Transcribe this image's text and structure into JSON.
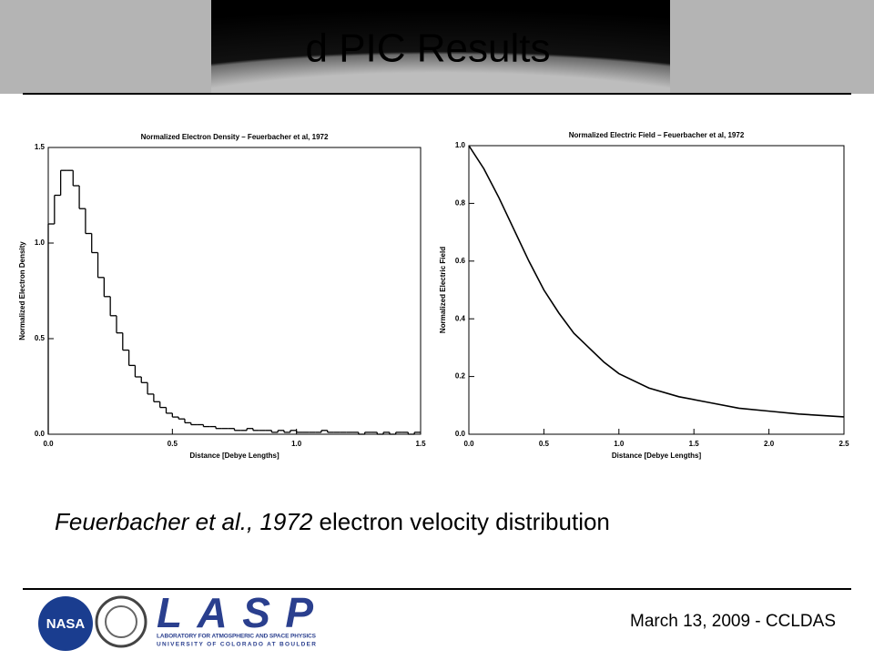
{
  "header": {
    "title": "d PIC Results"
  },
  "chart_data": [
    {
      "type": "histogram",
      "title": "Normalized Electron Density – Feuerbacher et al, 1972",
      "x_label": "Distance [Debye Lengths]",
      "y_label": "Normalized Electron Density",
      "color": "#000000",
      "bins": [
        0,
        0.025,
        0.05,
        0.075,
        0.1,
        0.125,
        0.15,
        0.175,
        0.2,
        0.225,
        0.25,
        0.275,
        0.3,
        0.325,
        0.35,
        0.375,
        0.4,
        0.425,
        0.45,
        0.475,
        0.5,
        0.525,
        0.55,
        0.575,
        0.6,
        0.625,
        0.65,
        0.675,
        0.7,
        0.725,
        0.75,
        0.775,
        0.8,
        0.825,
        0.85,
        0.875,
        0.9,
        0.925,
        0.95,
        0.975,
        1.0,
        1.025,
        1.05,
        1.075,
        1.1,
        1.125,
        1.15,
        1.175,
        1.2,
        1.225,
        1.25,
        1.275,
        1.3,
        1.325,
        1.35,
        1.375,
        1.4,
        1.425,
        1.45,
        1.475,
        1.5
      ],
      "values": [
        1.1,
        1.25,
        1.38,
        1.38,
        1.3,
        1.18,
        1.05,
        0.95,
        0.82,
        0.72,
        0.62,
        0.53,
        0.44,
        0.36,
        0.3,
        0.27,
        0.21,
        0.17,
        0.14,
        0.11,
        0.09,
        0.08,
        0.06,
        0.05,
        0.05,
        0.04,
        0.04,
        0.03,
        0.03,
        0.03,
        0.02,
        0.02,
        0.03,
        0.02,
        0.02,
        0.02,
        0.01,
        0.02,
        0.01,
        0.02,
        0.01,
        0.01,
        0.01,
        0.01,
        0.02,
        0.01,
        0.01,
        0.01,
        0.01,
        0.01,
        0,
        0.01,
        0.01,
        0,
        0.01,
        0,
        0.01,
        0.01,
        0,
        0.01
      ],
      "xlim": [
        0,
        1.5
      ],
      "ylim": [
        0,
        1.5
      ],
      "xticks": [
        {
          "value": 0,
          "label": "0.0"
        },
        0.5,
        {
          "value": 1,
          "label": "1.0"
        },
        1.5
      ],
      "yticks": [
        {
          "value": 0,
          "label": "0.0"
        },
        0.5,
        {
          "value": 1,
          "label": "1.0"
        },
        1.5
      ]
    },
    {
      "type": "line",
      "title": "Normalized Electric Field – Feuerbacher et al, 1972",
      "x_label": "Distance [Debye Lengths]",
      "y_label": "Normalized Electric Field",
      "color": "#000000",
      "x": [
        0,
        0.1,
        0.2,
        0.3,
        0.4,
        0.5,
        0.6,
        0.7,
        0.8,
        0.9,
        1.0,
        1.2,
        1.4,
        1.6,
        1.8,
        2.0,
        2.2,
        2.5
      ],
      "values": [
        1.0,
        0.92,
        0.82,
        0.71,
        0.6,
        0.5,
        0.42,
        0.35,
        0.3,
        0.25,
        0.21,
        0.16,
        0.13,
        0.11,
        0.09,
        0.08,
        0.07,
        0.06
      ],
      "xlim": [
        0,
        2.5
      ],
      "ylim": [
        0,
        1.0
      ],
      "xticks": [
        {
          "value": 0,
          "label": "0.0"
        },
        0.5,
        {
          "value": 1,
          "label": "1.0"
        },
        1.5,
        {
          "value": 2,
          "label": "2.0"
        },
        2.5
      ],
      "yticks": [
        {
          "value": 0,
          "label": "0.0"
        },
        0.2,
        0.4,
        0.6,
        0.8,
        {
          "value": 1,
          "label": "1.0"
        }
      ]
    }
  ],
  "caption": {
    "citation": "Feuerbacher et al., 1972",
    "text": " electron velocity distribution"
  },
  "footer": {
    "date": "March 13, 2009 - CCLDAS",
    "nasa": "NASA",
    "lasp": "LASP",
    "lasp_line1": "LABORATORY FOR ATMOSPHERIC AND SPACE PHYSICS",
    "lasp_line2": "UNIVERSITY OF COLORADO AT BOULDER"
  }
}
